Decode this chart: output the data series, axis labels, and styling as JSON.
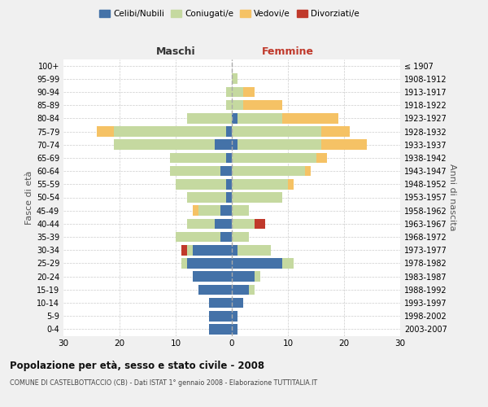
{
  "age_groups": [
    "100+",
    "95-99",
    "90-94",
    "85-89",
    "80-84",
    "75-79",
    "70-74",
    "65-69",
    "60-64",
    "55-59",
    "50-54",
    "45-49",
    "40-44",
    "35-39",
    "30-34",
    "25-29",
    "20-24",
    "15-19",
    "10-14",
    "5-9",
    "0-4"
  ],
  "birth_years": [
    "≤ 1907",
    "1908-1912",
    "1913-1917",
    "1918-1922",
    "1923-1927",
    "1928-1932",
    "1933-1937",
    "1938-1942",
    "1943-1947",
    "1948-1952",
    "1953-1957",
    "1958-1962",
    "1963-1967",
    "1968-1972",
    "1973-1977",
    "1978-1982",
    "1983-1987",
    "1988-1992",
    "1993-1997",
    "1998-2002",
    "2003-2007"
  ],
  "maschi": {
    "celibi": [
      0,
      0,
      0,
      0,
      0,
      1,
      3,
      1,
      2,
      1,
      1,
      2,
      3,
      2,
      7,
      8,
      7,
      6,
      4,
      4,
      4
    ],
    "coniugati": [
      0,
      0,
      1,
      1,
      8,
      20,
      18,
      10,
      9,
      9,
      7,
      4,
      5,
      8,
      1,
      1,
      0,
      0,
      0,
      0,
      0
    ],
    "vedovi": [
      0,
      0,
      0,
      0,
      0,
      3,
      0,
      0,
      0,
      0,
      0,
      1,
      0,
      0,
      0,
      0,
      0,
      0,
      0,
      0,
      0
    ],
    "divorziati": [
      0,
      0,
      0,
      0,
      0,
      0,
      0,
      0,
      0,
      0,
      0,
      0,
      0,
      0,
      1,
      0,
      0,
      0,
      0,
      0,
      0
    ]
  },
  "femmine": {
    "nubili": [
      0,
      0,
      0,
      0,
      1,
      0,
      1,
      0,
      0,
      0,
      0,
      0,
      0,
      0,
      1,
      9,
      4,
      3,
      2,
      1,
      1
    ],
    "coniugate": [
      0,
      1,
      2,
      2,
      8,
      16,
      15,
      15,
      13,
      10,
      9,
      3,
      4,
      3,
      6,
      2,
      1,
      1,
      0,
      0,
      0
    ],
    "vedove": [
      0,
      0,
      2,
      7,
      10,
      5,
      8,
      2,
      1,
      1,
      0,
      0,
      0,
      0,
      0,
      0,
      0,
      0,
      0,
      0,
      0
    ],
    "divorziate": [
      0,
      0,
      0,
      0,
      0,
      0,
      0,
      0,
      0,
      0,
      0,
      0,
      2,
      0,
      0,
      0,
      0,
      0,
      0,
      0,
      0
    ]
  },
  "colors": {
    "celibi": "#4472a8",
    "coniugati": "#c5d9a0",
    "vedovi": "#f5c265",
    "divorziati": "#c0392b"
  },
  "title": "Popolazione per età, sesso e stato civile - 2008",
  "subtitle": "COMUNE DI CASTELBOTTACCIO (CB) - Dati ISTAT 1° gennaio 2008 - Elaborazione TUTTITALIA.IT",
  "xlabel_left": "Maschi",
  "xlabel_right": "Femmine",
  "ylabel_left": "Fasce di età",
  "ylabel_right": "Anni di nascita",
  "xlim": 30,
  "bg_color": "#f0f0f0",
  "plot_bg": "#ffffff",
  "grid_color": "#cccccc"
}
